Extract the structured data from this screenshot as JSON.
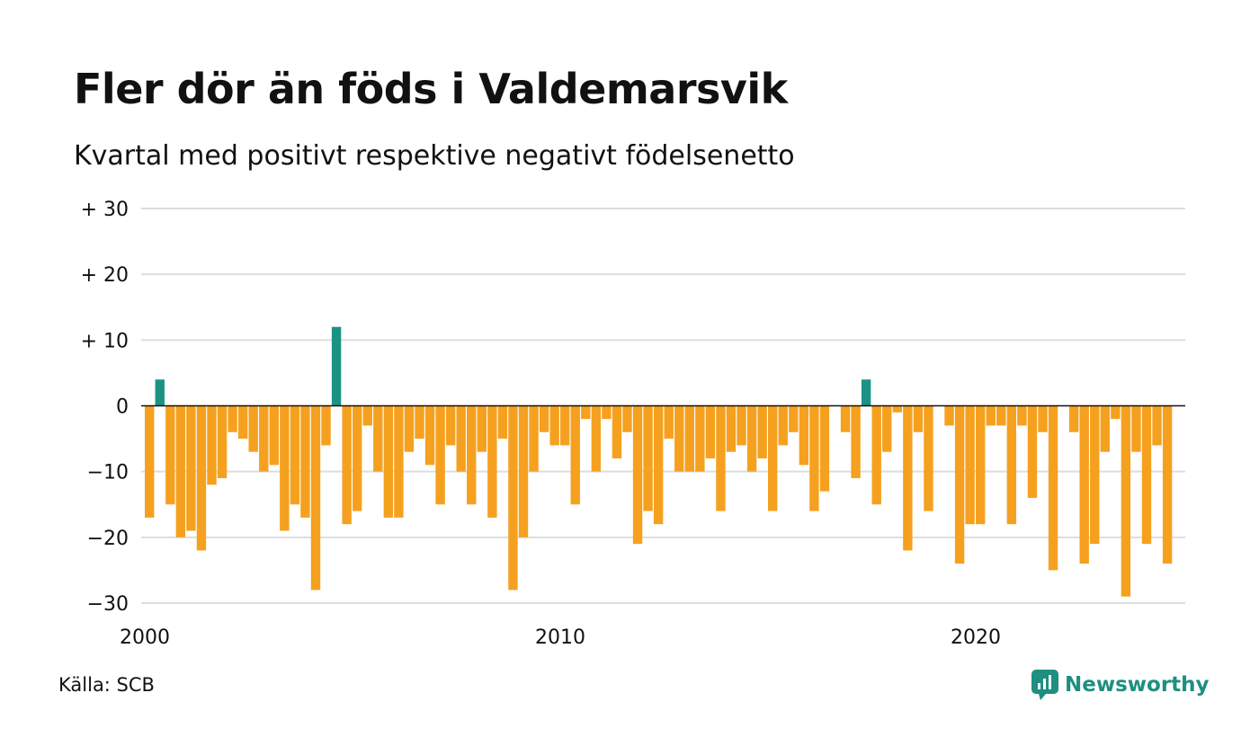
{
  "title": "Fler dör än föds i Valdemarsvik",
  "subtitle": "Kvartal med positivt respektive negativt födelsenetto",
  "source": "Källa: SCB",
  "brand": "Newsworthy",
  "colors": {
    "positive": "#1a9384",
    "negative": "#f5a11f",
    "grid": "#dddddd",
    "brand": "#1e8f80"
  },
  "chart_data": {
    "type": "bar",
    "title": "Fler dör än föds i Valdemarsvik",
    "subtitle": "Kvartal med positivt respektive negativt födelsenetto",
    "x_start": "2000 Q1",
    "x_frequency": "quarterly",
    "x_ticks": [
      {
        "year": 2000,
        "label": "2000"
      },
      {
        "year": 2010,
        "label": "2010"
      },
      {
        "year": 2020,
        "label": "2020"
      }
    ],
    "y_ticks": [
      {
        "value": 30,
        "label": "+ 30"
      },
      {
        "value": 20,
        "label": "+ 20"
      },
      {
        "value": 10,
        "label": "+ 10"
      },
      {
        "value": 0,
        "label": "0"
      },
      {
        "value": -10,
        "label": "−10"
      },
      {
        "value": -20,
        "label": "−20"
      },
      {
        "value": -30,
        "label": "−30"
      }
    ],
    "ylim": [
      -30,
      30
    ],
    "grid": true,
    "values": [
      -17,
      4,
      -15,
      -20,
      -19,
      -22,
      -12,
      -11,
      -4,
      -5,
      -7,
      -10,
      -9,
      -19,
      -15,
      -17,
      -28,
      -6,
      12,
      -18,
      -16,
      -3,
      -10,
      -17,
      -17,
      -7,
      -5,
      -9,
      -15,
      -6,
      -10,
      -15,
      -7,
      -17,
      -5,
      -28,
      -20,
      -10,
      -4,
      -6,
      -6,
      -15,
      -2,
      -10,
      -2,
      -8,
      -4,
      -21,
      -16,
      -18,
      -5,
      -10,
      -10,
      -10,
      -8,
      -16,
      -7,
      -6,
      -10,
      -8,
      -16,
      -6,
      -4,
      -9,
      -16,
      -13,
      0,
      -4,
      -11,
      4,
      -15,
      -7,
      -1,
      -22,
      -4,
      -16,
      0,
      -3,
      -24,
      -18,
      -18,
      -3,
      -3,
      -18,
      -3,
      -14,
      -4,
      -25,
      0,
      -4,
      -24,
      -21,
      -7,
      -2,
      -29,
      -7,
      -21,
      -6,
      -24
    ]
  }
}
